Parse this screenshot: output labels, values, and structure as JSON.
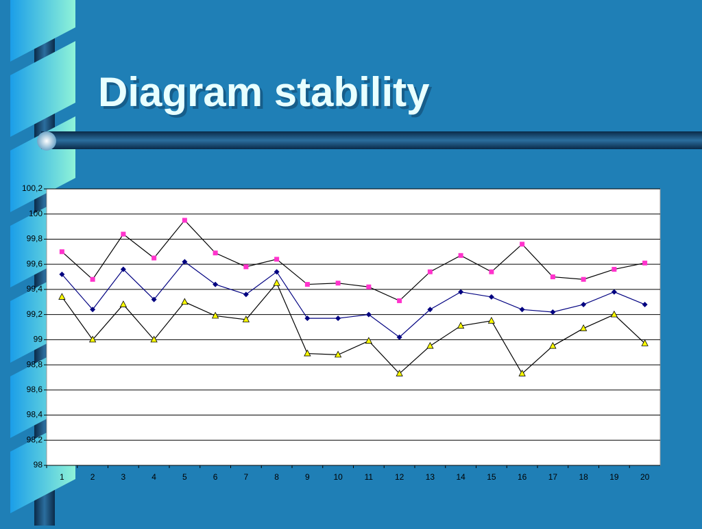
{
  "title": "Diagram stability",
  "chart_data": {
    "type": "line",
    "categories": [
      "1",
      "2",
      "3",
      "4",
      "5",
      "6",
      "7",
      "8",
      "9",
      "10",
      "11",
      "12",
      "13",
      "14",
      "15",
      "16",
      "17",
      "18",
      "19",
      "20"
    ],
    "series": [
      {
        "color": "#000000",
        "marker": "square",
        "marker_color": "#ff33cc",
        "values": [
          99.7,
          99.48,
          99.84,
          99.65,
          99.95,
          99.69,
          99.58,
          99.64,
          99.44,
          99.45,
          99.42,
          99.31,
          99.54,
          99.67,
          99.54,
          99.76,
          99.5,
          99.48,
          99.56,
          99.61
        ]
      },
      {
        "color": "#000080",
        "marker": "diamond",
        "marker_color": "#000080",
        "values": [
          99.52,
          99.24,
          99.56,
          99.32,
          99.62,
          99.44,
          99.36,
          99.54,
          99.17,
          99.17,
          99.2,
          99.02,
          99.24,
          99.38,
          99.34,
          99.24,
          99.22,
          99.28,
          99.38,
          99.28
        ]
      },
      {
        "color": "#000000",
        "marker": "triangle",
        "marker_color": "#ffff00",
        "values": [
          99.34,
          99.0,
          99.28,
          99.0,
          99.3,
          99.19,
          99.16,
          99.45,
          98.89,
          98.88,
          98.99,
          98.73,
          98.95,
          99.11,
          99.15,
          98.73,
          98.95,
          99.09,
          99.2,
          98.97
        ]
      }
    ],
    "ylim": [
      98,
      100.2
    ],
    "yticks": [
      98,
      {
        "value": 98.2,
        "label": "98,2"
      },
      {
        "value": 98.4,
        "label": "98,4"
      },
      {
        "value": 98.6,
        "label": "98,6"
      },
      {
        "value": 98.8,
        "label": "98,8"
      },
      99,
      {
        "value": 99.2,
        "label": "99,2"
      },
      {
        "value": 99.4,
        "label": "99,4"
      },
      {
        "value": 99.6,
        "label": "99,6"
      },
      {
        "value": 99.8,
        "label": "99,8"
      },
      100,
      {
        "value": 100.2,
        "label": "100,2"
      }
    ],
    "grid": true
  }
}
